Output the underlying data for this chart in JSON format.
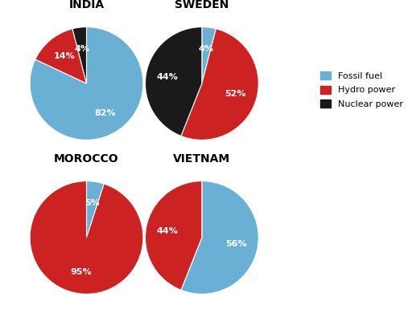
{
  "charts": [
    {
      "title": "INDIA",
      "values": [
        82,
        14,
        4
      ],
      "colors": [
        "#6ab0d4",
        "#cc2222",
        "#1a1a1a"
      ]
    },
    {
      "title": "SWEDEN",
      "values": [
        4,
        52,
        44
      ],
      "colors": [
        "#6ab0d4",
        "#cc2222",
        "#1a1a1a"
      ]
    },
    {
      "title": "MOROCCO",
      "values": [
        5,
        95,
        0
      ],
      "colors": [
        "#6ab0d4",
        "#cc2222",
        "#1a1a1a"
      ]
    },
    {
      "title": "VIETNAM",
      "values": [
        56,
        44,
        0
      ],
      "colors": [
        "#6ab0d4",
        "#cc2222",
        "#1a1a1a"
      ]
    }
  ],
  "legend_labels": [
    "Fossil fuel",
    "Hydro power",
    "Nuclear power"
  ],
  "legend_colors": [
    "#6ab0d4",
    "#cc2222",
    "#1a1a1a"
  ],
  "background_color": "#ffffff",
  "title_fontsize": 10,
  "pct_fontsize": 8,
  "legend_fontsize": 8
}
